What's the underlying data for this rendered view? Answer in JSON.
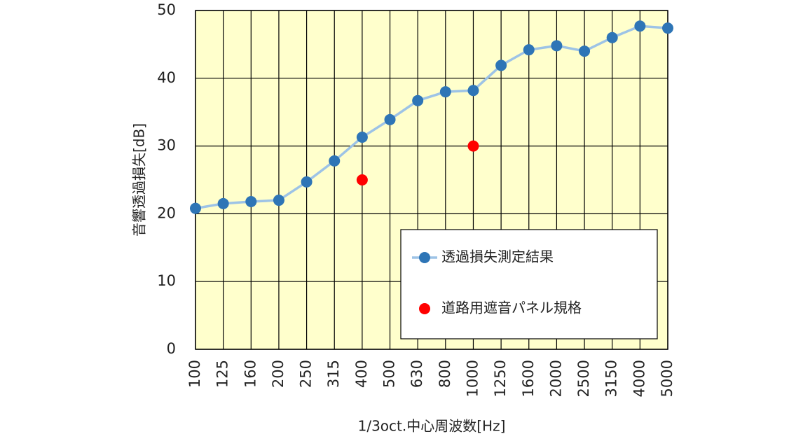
{
  "chart_data": {
    "type": "line",
    "y_label": "音響透過損失[dB]",
    "x_label": "1/3oct.中心周波数[Hz]",
    "categories": [
      "100",
      "125",
      "160",
      "200",
      "250",
      "315",
      "400",
      "500",
      "630",
      "800",
      "1000",
      "1250",
      "1600",
      "2000",
      "2500",
      "3150",
      "4000",
      "5000"
    ],
    "series": [
      {
        "name": "透過損失測定結果",
        "color": "#2e75b6",
        "line_color": "#9dc3e6",
        "show_line": true,
        "values": [
          20.8,
          21.5,
          21.8,
          22.0,
          24.7,
          27.8,
          31.3,
          33.9,
          36.7,
          38.0,
          38.2,
          41.9,
          44.2,
          44.8,
          44.0,
          46.0,
          47.7,
          47.4
        ]
      },
      {
        "name": "道路用遮音パネル規格",
        "color": "#ff0000",
        "show_line": false,
        "values": [
          null,
          null,
          null,
          null,
          null,
          null,
          25,
          null,
          null,
          null,
          30,
          null,
          null,
          null,
          null,
          null,
          null,
          null
        ]
      }
    ],
    "ylim": [
      0,
      50
    ],
    "yticks": [
      0,
      10,
      20,
      30,
      40,
      50
    ],
    "grid": true,
    "plot_background": "#ffffcc",
    "legend_position": "lower right"
  }
}
